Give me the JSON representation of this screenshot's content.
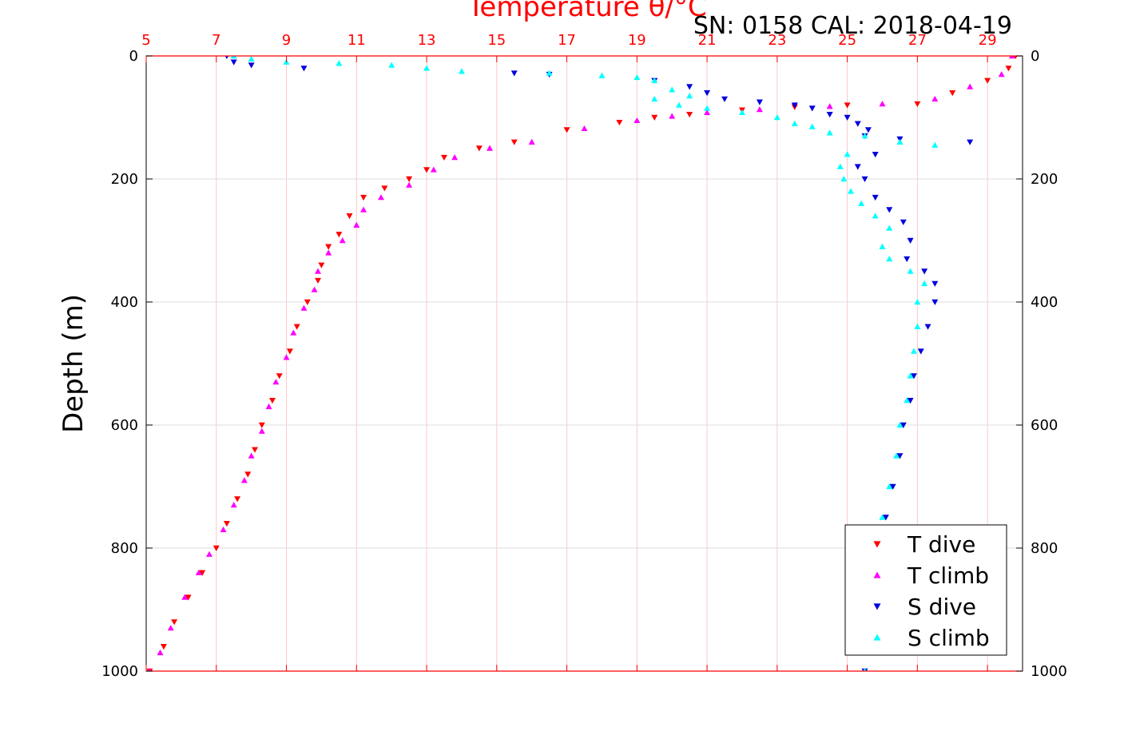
{
  "chart_data": {
    "type": "scatter",
    "title": "Temperature θ/°C",
    "subtitle": "SN: 0158  CAL: 2018-04-19",
    "ylabel": "Depth (m)",
    "xlim": [
      5,
      30
    ],
    "ylim": [
      0,
      1000
    ],
    "y_reversed": true,
    "grid": true,
    "legend_position": "bottom-right",
    "colors": {
      "axis_top": "#ff0000",
      "t_dive": "#ff0000",
      "t_climb": "#ff00ff",
      "s_dive": "#0000dd",
      "s_climb": "#00ffff",
      "grid_x": "#ffc8c8",
      "grid_y": "#dddddd"
    },
    "x_ticks": [
      "5",
      "7",
      "9",
      "11",
      "13",
      "15",
      "17",
      "19",
      "21",
      "23",
      "25",
      "27",
      "29"
    ],
    "y_ticks": [
      "0",
      "200",
      "400",
      "600",
      "800",
      "1000"
    ],
    "series": [
      {
        "name": "T dive",
        "marker": "triangle-down",
        "color_key": "t_dive",
        "points": [
          [
            29.8,
            0
          ],
          [
            29.6,
            20
          ],
          [
            29.0,
            40
          ],
          [
            28.0,
            60
          ],
          [
            27.0,
            78
          ],
          [
            25.0,
            80
          ],
          [
            23.5,
            83
          ],
          [
            22.0,
            88
          ],
          [
            20.5,
            95
          ],
          [
            19.5,
            100
          ],
          [
            18.5,
            108
          ],
          [
            17.0,
            120
          ],
          [
            15.5,
            140
          ],
          [
            14.5,
            150
          ],
          [
            13.5,
            165
          ],
          [
            13.0,
            185
          ],
          [
            12.5,
            200
          ],
          [
            11.8,
            215
          ],
          [
            11.2,
            230
          ],
          [
            10.8,
            260
          ],
          [
            10.5,
            290
          ],
          [
            10.2,
            310
          ],
          [
            10.0,
            340
          ],
          [
            9.9,
            365
          ],
          [
            9.6,
            400
          ],
          [
            9.3,
            440
          ],
          [
            9.1,
            480
          ],
          [
            8.8,
            520
          ],
          [
            8.6,
            560
          ],
          [
            8.3,
            600
          ],
          [
            8.1,
            640
          ],
          [
            7.9,
            680
          ],
          [
            7.6,
            720
          ],
          [
            7.3,
            760
          ],
          [
            7.0,
            800
          ],
          [
            6.6,
            840
          ],
          [
            6.2,
            880
          ],
          [
            5.8,
            920
          ],
          [
            5.5,
            960
          ],
          [
            5.1,
            1000
          ]
        ]
      },
      {
        "name": "T climb",
        "marker": "triangle-up",
        "color_key": "t_climb",
        "points": [
          [
            29.7,
            0
          ],
          [
            29.4,
            30
          ],
          [
            28.5,
            50
          ],
          [
            27.5,
            70
          ],
          [
            26.0,
            78
          ],
          [
            24.5,
            82
          ],
          [
            22.5,
            87
          ],
          [
            21.0,
            92
          ],
          [
            20.0,
            98
          ],
          [
            19.0,
            105
          ],
          [
            17.5,
            118
          ],
          [
            16.0,
            140
          ],
          [
            14.8,
            150
          ],
          [
            13.8,
            165
          ],
          [
            13.2,
            185
          ],
          [
            12.5,
            210
          ],
          [
            11.7,
            230
          ],
          [
            11.2,
            250
          ],
          [
            11.0,
            275
          ],
          [
            10.6,
            300
          ],
          [
            10.2,
            320
          ],
          [
            9.9,
            350
          ],
          [
            9.8,
            380
          ],
          [
            9.5,
            410
          ],
          [
            9.2,
            450
          ],
          [
            9.0,
            490
          ],
          [
            8.7,
            530
          ],
          [
            8.5,
            570
          ],
          [
            8.3,
            610
          ],
          [
            8.0,
            650
          ],
          [
            7.8,
            690
          ],
          [
            7.5,
            730
          ],
          [
            7.2,
            770
          ],
          [
            6.8,
            810
          ],
          [
            6.5,
            840
          ],
          [
            6.1,
            880
          ],
          [
            5.7,
            930
          ],
          [
            5.4,
            970
          ],
          [
            5.1,
            1000
          ]
        ]
      },
      {
        "name": "S dive",
        "marker": "triangle-down",
        "color_key": "s_dive",
        "points": [
          [
            7.3,
            0
          ],
          [
            7.5,
            10
          ],
          [
            8.0,
            15
          ],
          [
            9.5,
            20
          ],
          [
            15.5,
            28
          ],
          [
            16.5,
            30
          ],
          [
            19.5,
            40
          ],
          [
            20.5,
            50
          ],
          [
            21.0,
            60
          ],
          [
            21.5,
            70
          ],
          [
            22.5,
            75
          ],
          [
            23.5,
            80
          ],
          [
            24.0,
            85
          ],
          [
            24.5,
            95
          ],
          [
            25.0,
            100
          ],
          [
            25.3,
            110
          ],
          [
            25.6,
            120
          ],
          [
            25.5,
            130
          ],
          [
            26.5,
            135
          ],
          [
            28.5,
            140
          ],
          [
            25.8,
            160
          ],
          [
            25.3,
            180
          ],
          [
            25.5,
            200
          ],
          [
            25.8,
            230
          ],
          [
            26.2,
            250
          ],
          [
            26.6,
            270
          ],
          [
            26.8,
            300
          ],
          [
            26.7,
            330
          ],
          [
            27.2,
            350
          ],
          [
            27.5,
            370
          ],
          [
            27.5,
            400
          ],
          [
            27.3,
            440
          ],
          [
            27.1,
            480
          ],
          [
            26.9,
            520
          ],
          [
            26.8,
            560
          ],
          [
            26.6,
            600
          ],
          [
            26.5,
            650
          ],
          [
            26.3,
            700
          ],
          [
            26.1,
            750
          ],
          [
            25.9,
            800
          ],
          [
            25.8,
            850
          ],
          [
            25.7,
            900
          ],
          [
            25.6,
            950
          ],
          [
            25.5,
            1000
          ]
        ]
      },
      {
        "name": "S climb",
        "marker": "triangle-up",
        "color_key": "s_climb",
        "points": [
          [
            7.5,
            0
          ],
          [
            8.0,
            5
          ],
          [
            9.0,
            10
          ],
          [
            10.5,
            12
          ],
          [
            12.0,
            15
          ],
          [
            13.0,
            20
          ],
          [
            14.0,
            25
          ],
          [
            16.5,
            28
          ],
          [
            18.0,
            32
          ],
          [
            19.0,
            35
          ],
          [
            19.5,
            40
          ],
          [
            20.0,
            55
          ],
          [
            20.5,
            65
          ],
          [
            19.5,
            70
          ],
          [
            20.2,
            80
          ],
          [
            21.0,
            85
          ],
          [
            22.0,
            92
          ],
          [
            23.0,
            100
          ],
          [
            23.5,
            110
          ],
          [
            24.0,
            115
          ],
          [
            24.5,
            125
          ],
          [
            25.5,
            130
          ],
          [
            26.5,
            140
          ],
          [
            27.5,
            145
          ],
          [
            25.0,
            160
          ],
          [
            24.8,
            180
          ],
          [
            24.9,
            200
          ],
          [
            25.1,
            220
          ],
          [
            25.4,
            240
          ],
          [
            25.8,
            260
          ],
          [
            26.2,
            280
          ],
          [
            26.0,
            310
          ],
          [
            26.2,
            330
          ],
          [
            26.8,
            350
          ],
          [
            27.2,
            370
          ],
          [
            27.0,
            400
          ],
          [
            27.0,
            440
          ],
          [
            26.9,
            480
          ],
          [
            26.8,
            520
          ],
          [
            26.7,
            560
          ],
          [
            26.5,
            600
          ],
          [
            26.4,
            650
          ],
          [
            26.2,
            700
          ],
          [
            26.0,
            750
          ],
          [
            25.9,
            800
          ],
          [
            25.8,
            850
          ],
          [
            25.7,
            900
          ],
          [
            25.6,
            950
          ],
          [
            25.5,
            1000
          ]
        ]
      }
    ]
  }
}
